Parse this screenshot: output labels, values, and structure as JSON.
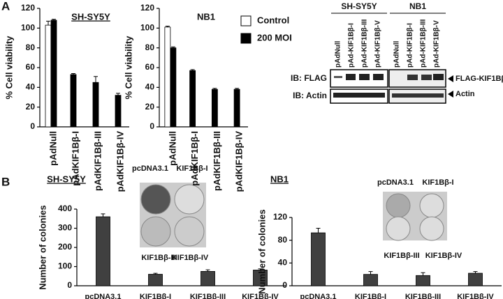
{
  "figure": {
    "panels": [
      "A",
      "B"
    ],
    "western_blot": {
      "groups": [
        {
          "title": "SH-SY5Y",
          "lanes": [
            "pAdNull",
            "pAd-KIF1Bβ-I",
            "pAd-KIF1Bβ-III",
            "pAd-KIF1Bβ-V"
          ]
        },
        {
          "title": "NB1",
          "lanes": [
            "pAdNull",
            "pAd-KIF1Bβ-I",
            "pAd-KIF1Bβ-III",
            "pAd-KIF1Bβ-V"
          ]
        }
      ],
      "rows": [
        "IB: FLAG",
        "IB: Actin"
      ],
      "markers": [
        "FLAG-KIF1Bβ",
        "Actin"
      ]
    },
    "plates": [
      {
        "labels": [
          "pcDNA3.1",
          "KIF1Bβ-I",
          "KIF1Bβ-III",
          "KIF1Bβ-IV"
        ]
      },
      {
        "labels": [
          "pcDNA3.1",
          "KIF1Bβ-I",
          "KIF1Bβ-III",
          "KIF1Bβ-IV"
        ]
      }
    ]
  },
  "chart_data": [
    {
      "type": "bar",
      "title": "SH-SY5Y",
      "y_label": "% Cell viability",
      "categories": [
        "pAdNull",
        "pAdKIF1Bβ-I",
        "pAdKIF1Bβ-III",
        "pAdKIF1Bβ-IV"
      ],
      "series": [
        {
          "name": "Control",
          "color": "#ffffff",
          "values": [
            103,
            null,
            null,
            null
          ],
          "errors": [
            4,
            null,
            null,
            null
          ]
        },
        {
          "name": "200 MOI",
          "color": "#000000",
          "values": [
            108,
            53,
            45,
            32
          ],
          "errors": [
            1,
            1,
            6,
            2
          ]
        }
      ],
      "ylim": [
        0,
        120
      ],
      "yticks": [
        0,
        20,
        40,
        60,
        80,
        100,
        120
      ]
    },
    {
      "type": "bar",
      "title": "NB1",
      "y_label": "% Cell viability",
      "categories": [
        "pAdNull",
        "pAdKIF1Bβ-I",
        "pAdKIF1Bβ-III",
        "pAdKIF1Bβ-IV"
      ],
      "series": [
        {
          "color": "#ffffff",
          "values": [
            101,
            null,
            null,
            null
          ],
          "errors": [
            1,
            null,
            null,
            null
          ]
        },
        {
          "color": "#000000",
          "values": [
            80,
            57,
            38,
            38
          ],
          "errors": [
            1,
            1,
            1,
            1
          ]
        }
      ],
      "ylim": [
        0,
        120
      ],
      "yticks": [
        0,
        20,
        40,
        60,
        80,
        100,
        120
      ]
    },
    {
      "type": "bar",
      "title": "SH-SY5Y",
      "y_label": "Number of colonies",
      "categories": [
        "pcDNA3.1",
        "KIF1Bβ-I",
        "KIF1Bβ-III",
        "KIF1Bβ-IV"
      ],
      "series": [
        {
          "color": "#404040",
          "values": [
            360,
            60,
            75,
            82
          ],
          "errors": [
            15,
            5,
            8,
            6
          ]
        }
      ],
      "ylim": [
        0,
        400
      ],
      "yticks": [
        0,
        100,
        200,
        300,
        400
      ]
    },
    {
      "type": "bar",
      "title": "NB1",
      "y_label": "Number of colonies",
      "categories": [
        "pcDNA3.1",
        "KIF1Bβ-I",
        "KIF1Bβ-III",
        "KIF1Bβ-IV"
      ],
      "series": [
        {
          "color": "#404040",
          "values": [
            93,
            20,
            18,
            22
          ],
          "errors": [
            8,
            5,
            5,
            3
          ]
        }
      ],
      "ylim": [
        0,
        120
      ],
      "yticks": [
        0,
        40,
        80,
        120
      ]
    }
  ]
}
